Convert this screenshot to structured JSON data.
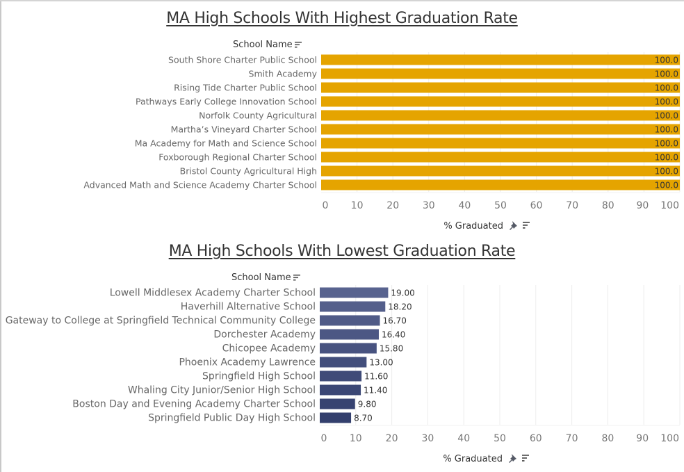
{
  "chart_data": [
    {
      "type": "bar",
      "orientation": "horizontal",
      "title": "MA High Schools With Highest Graduation Rate",
      "row_header": "School Name",
      "xlabel": "% Graduated",
      "ylabel": "School Name",
      "xlim": [
        0,
        100
      ],
      "x_ticks": [
        0,
        10,
        20,
        30,
        40,
        50,
        60,
        70,
        80,
        90,
        100
      ],
      "grid": true,
      "bar_color": "#e5a400",
      "categories": [
        "South Shore Charter Public School",
        "Smith Academy",
        "Rising Tide Charter Public School",
        "Pathways Early College Innovation School",
        "Norfolk County Agricultural",
        "Martha’s Vineyard Charter School",
        "Ma Academy for Math and Science School",
        "Foxborough Regional Charter School",
        "Bristol County Agricultural High",
        "Advanced Math and Science Academy Charter School"
      ],
      "values": [
        100.0,
        100.0,
        100.0,
        100.0,
        100.0,
        100.0,
        100.0,
        100.0,
        100.0,
        100.0
      ],
      "value_labels": [
        "100.0",
        "100.0",
        "100.0",
        "100.0",
        "100.0",
        "100.0",
        "100.0",
        "100.0",
        "100.0",
        "100.0"
      ]
    },
    {
      "type": "bar",
      "orientation": "horizontal",
      "title": "MA High Schools With Lowest Graduation Rate",
      "row_header": "School Name",
      "xlabel": "% Graduated",
      "ylabel": "School Name",
      "xlim": [
        0,
        100
      ],
      "x_ticks": [
        0,
        10,
        20,
        30,
        40,
        50,
        60,
        70,
        80,
        90,
        100
      ],
      "grid": true,
      "bar_color_light": "#58638f",
      "bar_color_dark": "#333f6d",
      "categories": [
        "Lowell Middlesex Academy Charter School",
        "Haverhill Alternative School",
        "Gateway to College at Springfield Technical Community College",
        "Dorchester Academy",
        "Chicopee Academy",
        "Phoenix Academy Lawrence",
        "Springfield High School",
        "Whaling City Junior/Senior High School",
        "Boston Day and Evening Academy Charter School",
        "Springfield Public Day High School"
      ],
      "values": [
        19.0,
        18.2,
        16.7,
        16.4,
        15.8,
        13.0,
        11.6,
        11.4,
        9.8,
        8.7
      ],
      "value_labels": [
        "19.00",
        "18.20",
        "16.70",
        "16.40",
        "15.80",
        "13.00",
        "11.60",
        "11.40",
        "9.80",
        "8.70"
      ]
    }
  ],
  "icons": {
    "sort": "sort-descending-icon",
    "pin": "pin-icon"
  }
}
